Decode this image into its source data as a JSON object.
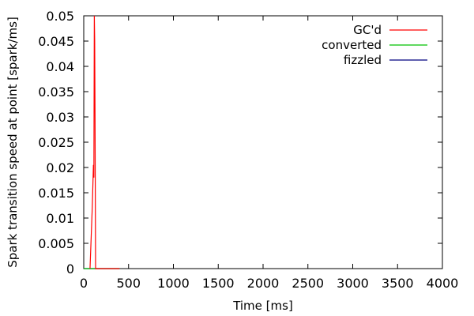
{
  "chart_data": {
    "type": "line",
    "title": "",
    "xlabel": "Time [ms]",
    "ylabel": "Spark transition speed at point [spark/ms]",
    "xlim": [
      0,
      4000
    ],
    "ylim": [
      0,
      0.05
    ],
    "grid": false,
    "legend_position": "top-right",
    "x_ticks": [
      "0",
      "500",
      "1000",
      "1500",
      "2000",
      "2500",
      "3000",
      "3500",
      "4000"
    ],
    "y_ticks": [
      "0",
      "0.005",
      "0.01",
      "0.015",
      "0.02",
      "0.025",
      "0.03",
      "0.035",
      "0.04",
      "0.045",
      "0.05"
    ],
    "series": [
      {
        "name": "GC'd",
        "color": "#ff0000",
        "points": [
          [
            70,
            0
          ],
          [
            95,
            0.012
          ],
          [
            108,
            0.0205
          ],
          [
            113,
            0.018
          ],
          [
            118,
            0.05
          ],
          [
            122,
            0.045
          ],
          [
            126,
            0.03
          ],
          [
            132,
            0
          ],
          [
            400,
            0
          ]
        ]
      },
      {
        "name": "converted",
        "color": "#00c000",
        "points": [
          [
            0,
            0
          ],
          [
            400,
            0
          ]
        ]
      },
      {
        "name": "fizzled",
        "color": "#000080",
        "points": [
          [
            0,
            0
          ],
          [
            400,
            0
          ]
        ]
      }
    ]
  }
}
